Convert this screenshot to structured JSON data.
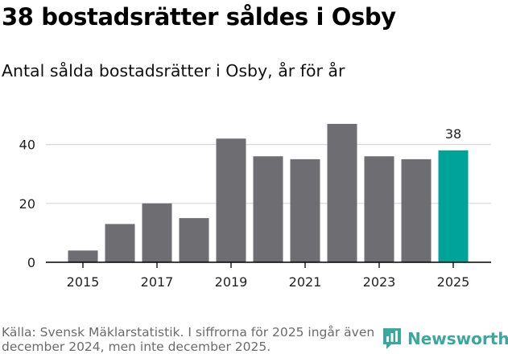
{
  "header": {
    "title": "38 bostadsrätter såldes i Osby",
    "subtitle": "Antal sålda bostadsrätter i Osby, år för år"
  },
  "footer": {
    "source": "Källa: Svensk Mäklarstatistik. I siffrorna för 2025 ingår även december 2024, men inte december 2025.",
    "brand": "Newsworthy"
  },
  "colors": {
    "bar": "#6e6d71",
    "highlight": "#00a39a",
    "grid": "#d9d9d9",
    "axis": "#000000",
    "brand": "#3aa89e"
  },
  "chart_data": {
    "type": "bar",
    "title": "Antal sålda bostadsrätter i Osby, år för år",
    "xlabel": "",
    "ylabel": "",
    "categories": [
      "2015",
      "2016",
      "2017",
      "2018",
      "2019",
      "2020",
      "2021",
      "2022",
      "2023",
      "2024",
      "2025"
    ],
    "values": [
      4,
      13,
      20,
      15,
      42,
      36,
      35,
      47,
      36,
      35,
      38
    ],
    "highlight_index": 10,
    "data_labels": [
      {
        "index": 10,
        "text": "38"
      }
    ],
    "x_tick_labels": [
      "2015",
      "2017",
      "2019",
      "2021",
      "2023",
      "2025"
    ],
    "y_ticks": [
      0,
      20,
      40
    ],
    "ylim": [
      0,
      50
    ],
    "grid": true
  }
}
